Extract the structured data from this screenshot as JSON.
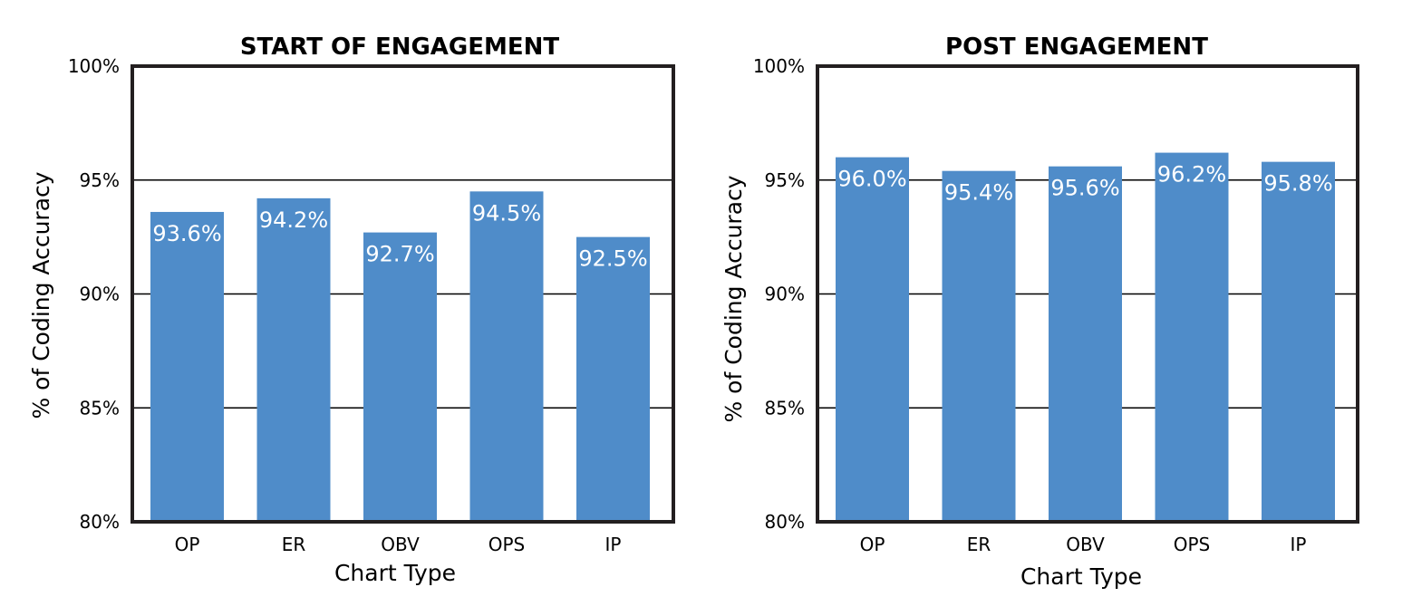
{
  "chart_data": [
    {
      "type": "bar",
      "title": "START OF ENGAGEMENT",
      "xlabel": "Chart Type",
      "ylabel": "% of Coding Accuracy",
      "categories": [
        "OP",
        "ER",
        "OBV",
        "OPS",
        "IP"
      ],
      "values": [
        93.6,
        94.2,
        92.7,
        94.5,
        92.5
      ],
      "value_labels": [
        "93.6%",
        "94.2%",
        "92.7%",
        "94.5%",
        "92.5%"
      ],
      "ylim": [
        80,
        100
      ],
      "yticks": [
        80,
        85,
        90,
        95,
        100
      ],
      "ytick_labels": [
        "80%",
        "85%",
        "90%",
        "95%",
        "100%"
      ],
      "grid": true,
      "bar_color": "#4f8cc9"
    },
    {
      "type": "bar",
      "title": "POST ENGAGEMENT",
      "xlabel": "Chart Type",
      "ylabel": "% of Coding Accuracy",
      "categories": [
        "OP",
        "ER",
        "OBV",
        "OPS",
        "IP"
      ],
      "values": [
        96.0,
        95.4,
        95.6,
        96.2,
        95.8
      ],
      "value_labels": [
        "96.0%",
        "95.4%",
        "95.6%",
        "96.2%",
        "95.8%"
      ],
      "ylim": [
        80,
        100
      ],
      "yticks": [
        80,
        85,
        90,
        95,
        100
      ],
      "ytick_labels": [
        "80%",
        "85%",
        "90%",
        "95%",
        "100%"
      ],
      "grid": true,
      "bar_color": "#4f8cc9"
    }
  ]
}
